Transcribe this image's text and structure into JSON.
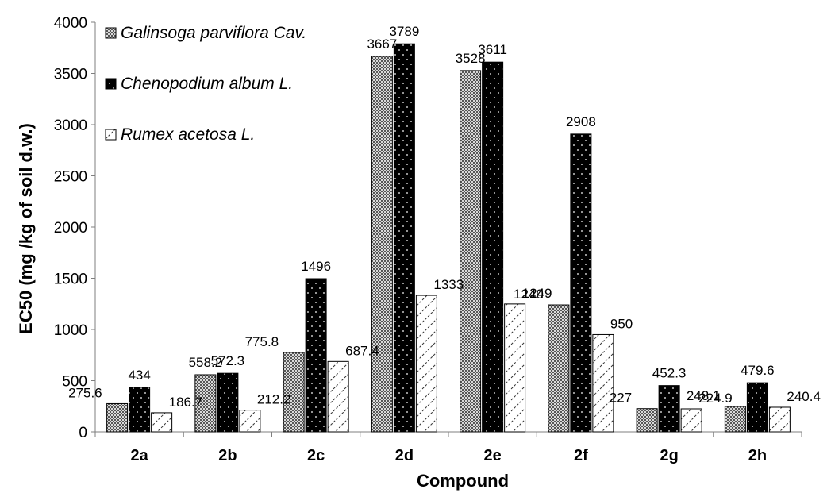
{
  "chart_data": {
    "type": "bar",
    "xlabel": "Compound",
    "ylabel": "EC50 (mg /kg of soil d.w.)",
    "ylim": [
      0,
      4000
    ],
    "yticks": [
      0,
      500,
      1000,
      1500,
      2000,
      2500,
      3000,
      3500,
      4000
    ],
    "grid": false,
    "legend_position": "top-left",
    "categories": [
      "2a",
      "2b",
      "2c",
      "2d",
      "2e",
      "2f",
      "2g",
      "2h"
    ],
    "series": [
      {
        "name": "Galinsoga parviflora Cav.",
        "values": [
          275.6,
          558.2,
          775.8,
          3667,
          3528,
          1240,
          227,
          248.1
        ],
        "labels": [
          "275.6",
          "558.2",
          "775.8",
          "3667",
          "3528",
          "1240",
          "227",
          "248.1"
        ],
        "pattern": "fine-checker"
      },
      {
        "name": "Chenopodium album L.",
        "values": [
          434,
          572.3,
          1496,
          3789,
          3611,
          2908,
          452.3,
          479.6
        ],
        "labels": [
          "434",
          "572.3",
          "1496",
          "3789",
          "3611",
          "2908",
          "452.3",
          "479.6"
        ],
        "pattern": "black-dotted"
      },
      {
        "name": "Rumex acetosa L.",
        "values": [
          186.7,
          212.2,
          687.4,
          1333,
          1249,
          950,
          224.9,
          240.4
        ],
        "labels": [
          "186.7",
          "212.2",
          "687.4",
          "1333",
          "1249",
          "950",
          "224.9",
          "240.4"
        ],
        "pattern": "diagonal-hatch"
      }
    ]
  }
}
